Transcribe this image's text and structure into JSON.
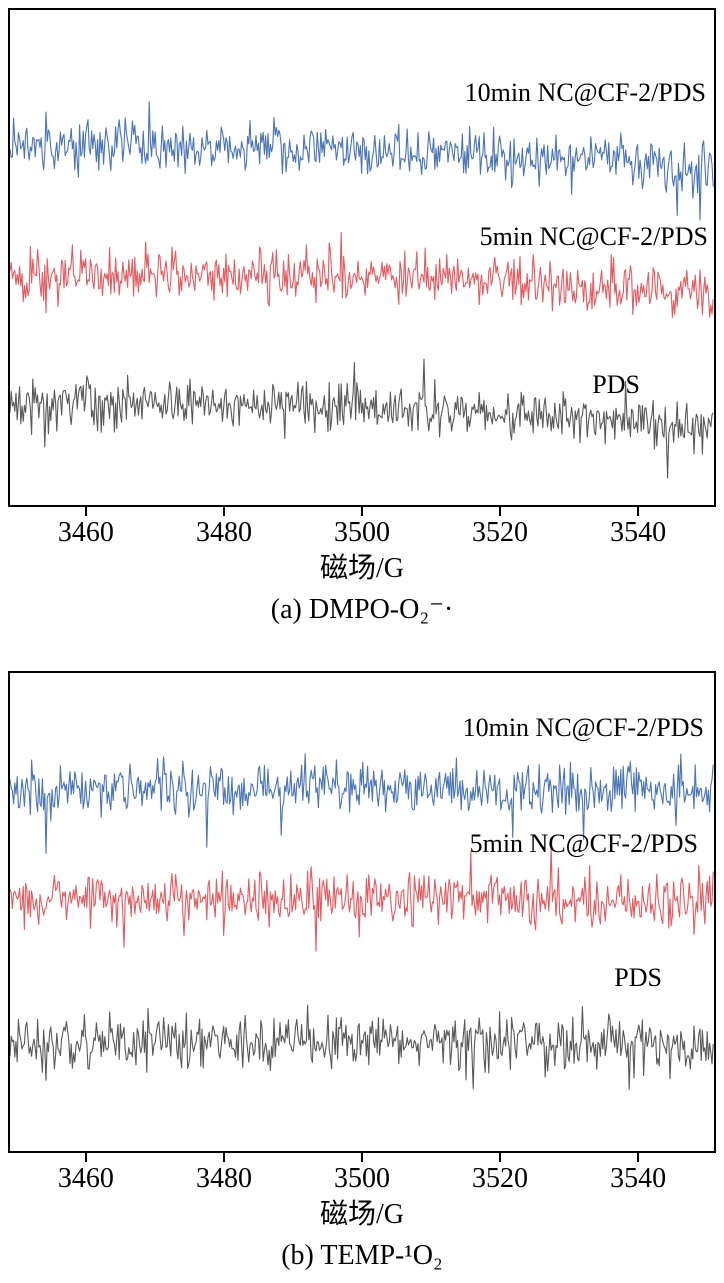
{
  "figure": {
    "background": "#ffffff",
    "axis_color": "#000000",
    "description": "Two stacked EPR spectra panels; every trace is featureless baseline noise (no radical adduct signal detected)"
  },
  "chart_data": [
    {
      "type": "line",
      "title": "(a) DMPO-O₂⁻·",
      "xlabel": "磁场/G",
      "ylabel": "",
      "xlim": [
        3449,
        3551
      ],
      "xticks": [
        3460,
        3480,
        3500,
        3520,
        3540
      ],
      "grid": false,
      "legend_position": "inline-right",
      "signal": "baseline noise only, no DMPO-O2 adduct peaks",
      "series": [
        {
          "name": "10min NC@CF-2/PDS",
          "color": "#4a74b5",
          "baseline": 0.3,
          "noise_amplitude": 0.047,
          "hump": 0.018,
          "slope": 0.045,
          "seed": 101
        },
        {
          "name": "5min NC@CF-2/PDS",
          "color": "#e15b60",
          "baseline": 0.555,
          "noise_amplitude": 0.047,
          "hump": 0.012,
          "slope": 0.04,
          "seed": 202
        },
        {
          "name": "PDS",
          "color": "#595959",
          "baseline": 0.815,
          "noise_amplitude": 0.043,
          "hump": 0.01,
          "slope": 0.05,
          "seed": 303
        }
      ]
    },
    {
      "type": "line",
      "title": "(b) TEMP-¹O₂",
      "xlabel": "磁场/G",
      "ylabel": "",
      "xlim": [
        3449,
        3551
      ],
      "xticks": [
        3460,
        3480,
        3500,
        3520,
        3540
      ],
      "grid": false,
      "legend_position": "inline-right",
      "signal": "baseline noise only, no TEMP-1O2 triplet",
      "series": [
        {
          "name": "10min NC@CF-2/PDS",
          "color": "#4a74b5",
          "baseline": 0.245,
          "noise_amplitude": 0.05,
          "hump": 0.006,
          "slope": 0.004,
          "seed": 404
        },
        {
          "name": "5min NC@CF-2/PDS",
          "color": "#e15b60",
          "baseline": 0.475,
          "noise_amplitude": 0.05,
          "hump": 0.006,
          "slope": 0.004,
          "seed": 505
        },
        {
          "name": "PDS",
          "color": "#595959",
          "baseline": 0.78,
          "noise_amplitude": 0.05,
          "hump": 0.006,
          "slope": 0.006,
          "seed": 606
        }
      ]
    }
  ]
}
